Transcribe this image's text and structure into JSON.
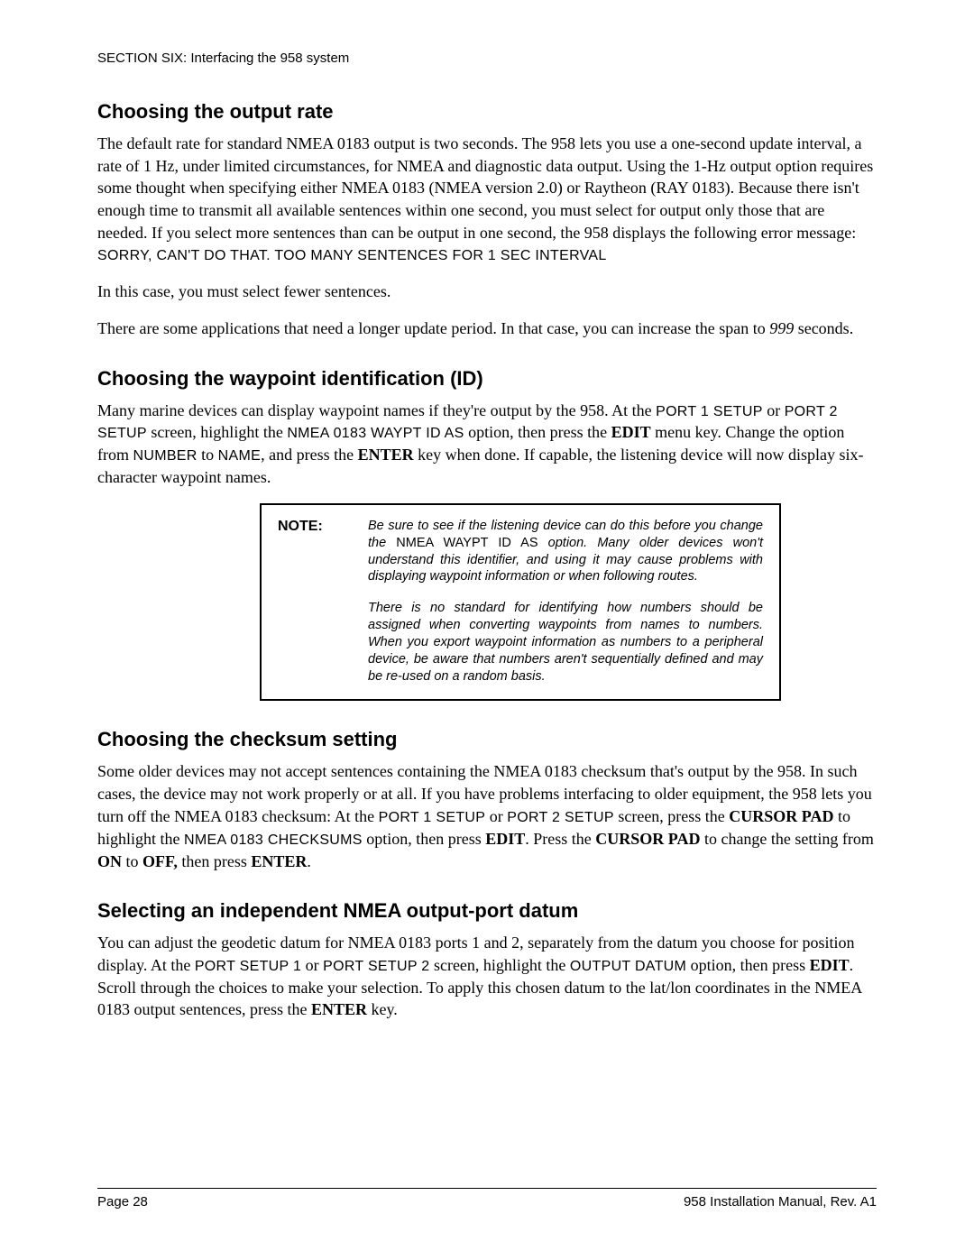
{
  "section_header": "SECTION SIX: Interfacing the 958 system",
  "s1": {
    "heading": "Choosing the output rate",
    "p1_a": "The default rate for standard NMEA 0183 output is two seconds. The 958 lets you use a one-second update interval, a rate of 1 Hz, under limited circumstances, for NMEA and diagnostic data output. Using the 1-Hz output option requires some thought when specifying either NMEA 0183 (NMEA version 2.0) or Raytheon (RAY 0183). Because there isn't enough time to transmit all available sentences within one second, you must select for output only those that are needed. If you select more sentences than can be output in one second, the 958 displays the following error message: ",
    "p1_mono": "SORRY, CAN'T DO THAT. TOO MANY SENTENCES FOR 1 SEC INTERVAL",
    "p2": "In this case, you must select fewer sentences.",
    "p3_a": "There are some applications that need a longer update period. In that case, you can increase the span to ",
    "p3_b": "999",
    "p3_c": " seconds."
  },
  "s2": {
    "heading": "Choosing the waypoint identification (ID)",
    "p1_a": "Many marine devices can display waypoint names if they're output by the 958. At the ",
    "p1_mono1": "PORT 1 SETUP",
    "p1_b": " or ",
    "p1_mono2": "PORT 2 SETUP",
    "p1_c": " screen, highlight the ",
    "p1_mono3": "NMEA 0183 WAYPT ID AS",
    "p1_d": " option, then press the ",
    "p1_bold1": "EDIT",
    "p1_e": " menu key. Change the option from ",
    "p1_mono4": "NUMBER",
    "p1_f": " to ",
    "p1_mono5": "NAME",
    "p1_g": ", and press the ",
    "p1_bold2": "ENTER",
    "p1_h": " key when done. If capable, the listening device will now display six-character waypoint names."
  },
  "note": {
    "label": "NOTE:",
    "p1_a": "Be sure to see if the listening device can do this before you change the ",
    "p1_mono": "NMEA WAYPT ID AS",
    "p1_b": " option. Many older devices won't understand this identifier, and using it may cause problems with displaying waypoint information or when following routes.",
    "p2": "There is no standard for identifying how numbers should be assigned when converting waypoints from names to numbers. When you export waypoint information as numbers to a peripheral device, be aware that numbers aren't sequentially defined and may be re-used on a random basis."
  },
  "s3": {
    "heading": "Choosing the checksum setting",
    "p1_a": "Some older devices may not accept sentences containing the NMEA 0183 checksum that's output by the 958. In such cases, the device may not work properly or at all. If you have problems interfacing to older equipment, the 958 lets you turn off the NMEA 0183 checksum: At the ",
    "p1_mono1": "PORT 1 SETUP",
    "p1_b": " or ",
    "p1_mono2": "PORT 2 SETUP",
    "p1_c": " screen, press the ",
    "p1_bold1": "CURSOR PAD",
    "p1_d": " to highlight the ",
    "p1_mono3": "NMEA 0183 CHECKSUMS",
    "p1_e": " option, then press ",
    "p1_bold2": "EDIT",
    "p1_f": ". Press the ",
    "p1_bold3": "CURSOR PAD",
    "p1_g": " to change the setting from ",
    "p1_bold4": "ON",
    "p1_h": " to ",
    "p1_bold5": "OFF,",
    "p1_i": " then press ",
    "p1_bold6": "ENTER",
    "p1_j": "."
  },
  "s4": {
    "heading": "Selecting an independent NMEA output-port datum",
    "p1_a": "You can adjust the geodetic datum for NMEA 0183 ports 1 and 2, separately from the datum you choose for position display. At the ",
    "p1_mono1": "PORT SETUP 1",
    "p1_b": " or ",
    "p1_mono2": "PORT SETUP 2",
    "p1_c": " screen, highlight the ",
    "p1_mono3": "OUTPUT DATUM",
    "p1_d": " option, then press ",
    "p1_bold1": "EDIT",
    "p1_e": ". Scroll through the choices to make your selection. To apply this chosen datum to the lat/lon coordinates in the NMEA 0183 output sentences, press the ",
    "p1_bold2": "ENTER",
    "p1_f": " key."
  },
  "footer": {
    "left": "Page 28",
    "right": "958 Installation Manual, Rev. A1"
  }
}
